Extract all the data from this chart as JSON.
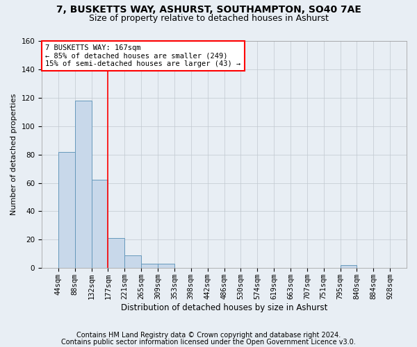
{
  "title1": "7, BUSKETTS WAY, ASHURST, SOUTHAMPTON, SO40 7AE",
  "title2": "Size of property relative to detached houses in Ashurst",
  "xlabel": "Distribution of detached houses by size in Ashurst",
  "ylabel": "Number of detached properties",
  "bar_values": [
    82,
    118,
    62,
    21,
    9,
    3,
    3,
    0,
    0,
    0,
    0,
    0,
    0,
    0,
    0,
    0,
    0,
    2,
    0,
    0
  ],
  "bar_color": "#c8d8ea",
  "bar_edge_color": "#6699bb",
  "x_labels": [
    "44sqm",
    "88sqm",
    "132sqm",
    "177sqm",
    "221sqm",
    "265sqm",
    "309sqm",
    "353sqm",
    "398sqm",
    "442sqm",
    "486sqm",
    "530sqm",
    "574sqm",
    "619sqm",
    "663sqm",
    "707sqm",
    "751sqm",
    "795sqm",
    "840sqm",
    "884sqm",
    "928sqm"
  ],
  "ylim": [
    0,
    160
  ],
  "yticks": [
    0,
    20,
    40,
    60,
    80,
    100,
    120,
    140,
    160
  ],
  "property_line_x": 3,
  "property_line_color": "red",
  "annotation_text": "7 BUSKETTS WAY: 167sqm\n← 85% of detached houses are smaller (249)\n15% of semi-detached houses are larger (43) →",
  "footer1": "Contains HM Land Registry data © Crown copyright and database right 2024.",
  "footer2": "Contains public sector information licensed under the Open Government Licence v3.0.",
  "background_color": "#e8eef4",
  "plot_bg_color": "#e8eef4",
  "grid_color": "#c0c8d0",
  "title1_fontsize": 10,
  "title2_fontsize": 9,
  "xlabel_fontsize": 8.5,
  "ylabel_fontsize": 8,
  "tick_fontsize": 7.5,
  "footer_fontsize": 7,
  "annotation_fontsize": 7.5
}
